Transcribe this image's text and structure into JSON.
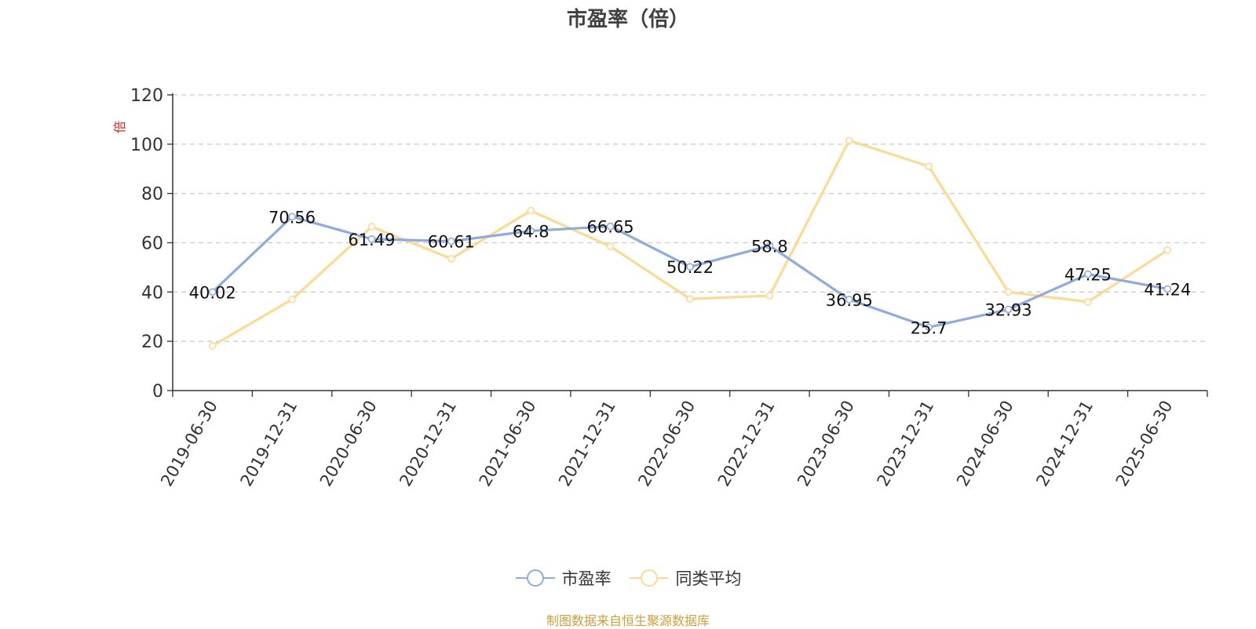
{
  "chart_data": {
    "type": "line",
    "title": "市盈率（倍）",
    "ylabel": "倍",
    "ylim": [
      0,
      120
    ],
    "y_ticks": [
      0,
      20,
      40,
      60,
      80,
      100,
      120
    ],
    "grid": true,
    "legend_position": "bottom",
    "categories": [
      "2019-06-30",
      "2019-12-31",
      "2020-06-30",
      "2020-12-31",
      "2021-06-30",
      "2021-12-31",
      "2022-06-30",
      "2022-12-31",
      "2023-06-30",
      "2023-12-31",
      "2024-06-30",
      "2024-12-31",
      "2025-06-30"
    ],
    "series": [
      {
        "name": "市盈率",
        "color": "#8faadc",
        "show_labels": true,
        "values": [
          40.02,
          70.56,
          61.49,
          60.61,
          64.8,
          66.65,
          50.22,
          58.8,
          36.95,
          25.7,
          32.93,
          47.25,
          41.24
        ]
      },
      {
        "name": "同类平均",
        "color": "#fcd995",
        "show_labels": false,
        "values": [
          18.2,
          37.0,
          66.5,
          53.5,
          73.0,
          58.5,
          37.2,
          38.5,
          101.5,
          91.0,
          40.0,
          36.0,
          57.0
        ]
      }
    ]
  },
  "source_note": "制图数据来自恒生聚源数据库"
}
